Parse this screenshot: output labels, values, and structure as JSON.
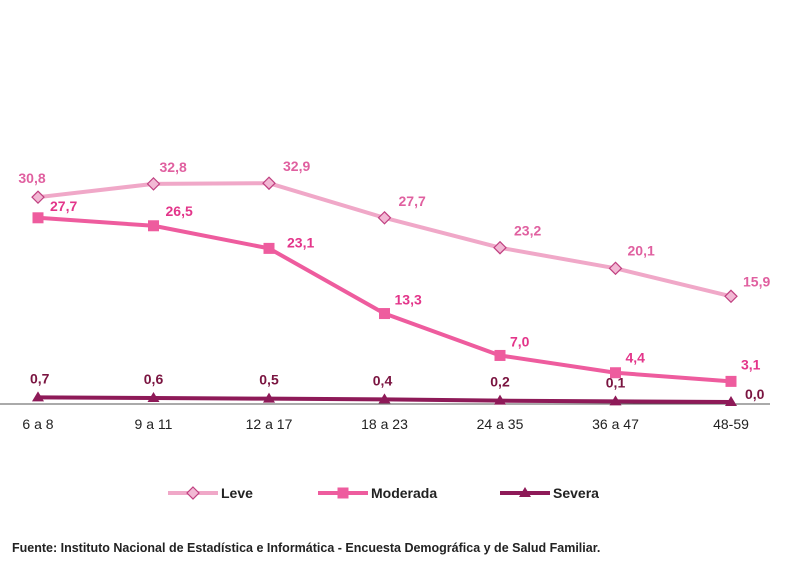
{
  "chart_data": {
    "type": "line",
    "categories": [
      "6 a 8",
      "9 a 11",
      "12 a 17",
      "18 a 23",
      "24 a 35",
      "36 a 47",
      "48-59"
    ],
    "series": [
      {
        "name": "Leve",
        "values": [
          30.8,
          32.8,
          32.9,
          27.7,
          23.2,
          20.1,
          15.9
        ],
        "labels": [
          "30,8",
          "32,8",
          "32,9",
          "27,7",
          "23,2",
          "20,1",
          "15,9"
        ],
        "color": "#f0a8c8",
        "label_color": "#e060a0",
        "marker": "diamond"
      },
      {
        "name": "Moderada",
        "values": [
          27.7,
          26.5,
          23.1,
          13.3,
          7.0,
          4.4,
          3.1
        ],
        "labels": [
          "27,7",
          "26,5",
          "23,1",
          "13,3",
          "7,0",
          "4,4",
          "3,1"
        ],
        "color": "#ee5c9e",
        "label_color": "#e3358a",
        "marker": "square"
      },
      {
        "name": "Severa",
        "values": [
          0.7,
          0.6,
          0.5,
          0.4,
          0.2,
          0.1,
          0.0
        ],
        "labels": [
          "0,7",
          "0,6",
          "0,5",
          "0,4",
          "0,2",
          "0,1",
          "0,0"
        ],
        "color": "#8e1a58",
        "label_color": "#7a1440",
        "marker": "triangle"
      }
    ],
    "ylim": [
      0,
      40
    ],
    "grid": false,
    "legend_position": "bottom"
  },
  "source": "Fuente: Instituto Nacional de Estadística e Informática - Encuesta Demográfica y de Salud Familiar."
}
